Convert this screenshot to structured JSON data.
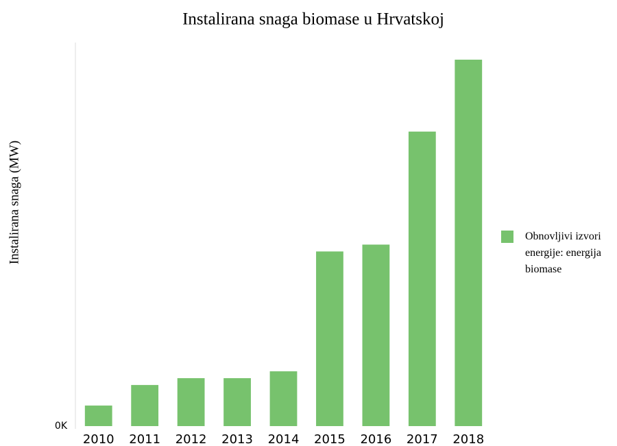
{
  "chart_data": {
    "type": "bar",
    "title": "Instalirana snaga biomase u Hrvatskoj",
    "y_label": "Instalirana snaga (MW)",
    "categories": [
      "2010",
      "2011",
      "2012",
      "2013",
      "2014",
      "2015",
      "2016",
      "2017",
      "2018"
    ],
    "series": [
      {
        "name": "Obnovljivi izvori energije: energija biomase",
        "color": "#77c26d",
        "values": [
          6,
          12,
          14,
          14,
          16,
          51,
          53,
          86,
          107
        ]
      }
    ],
    "ylim": [
      0,
      112
    ],
    "yticks": [
      {
        "value": 0,
        "label": "0K"
      }
    ],
    "grid": false,
    "legend": "right"
  }
}
